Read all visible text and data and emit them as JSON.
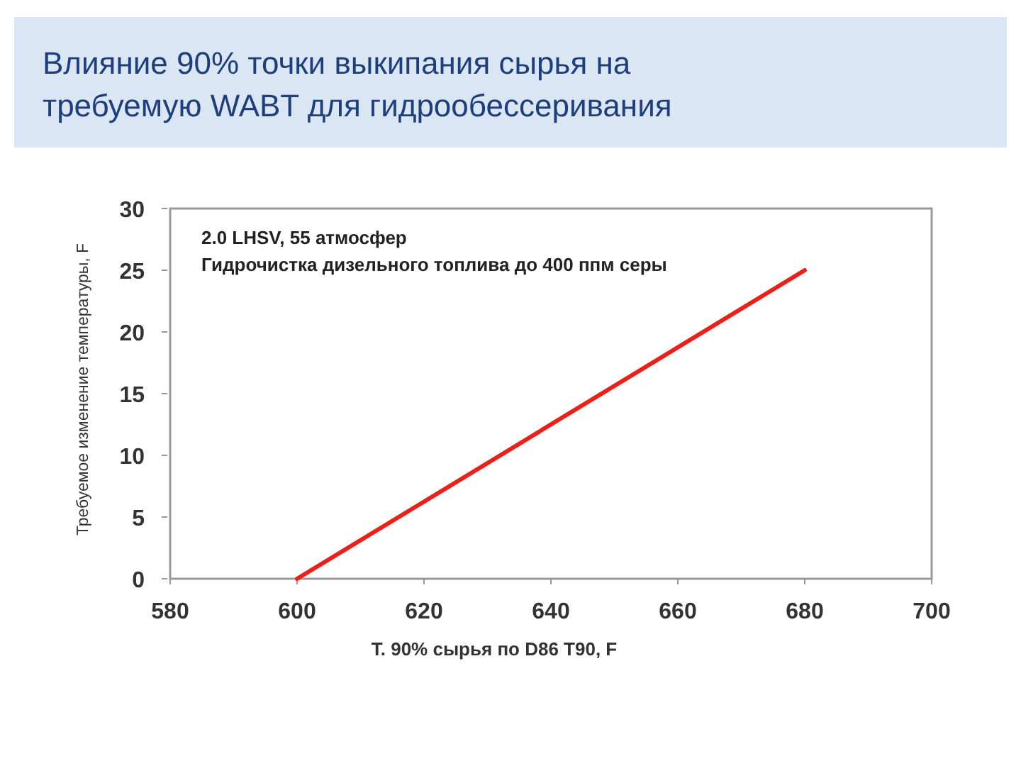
{
  "chart_data": {
    "type": "line",
    "title": "Влияние 90% точки выкипания сырья на требуемую WABT для гидрообессеривания",
    "xlabel": "T. 90% сырья по D86 T90, F",
    "ylabel": "Требуемое изменение температуры, F",
    "annotations": [
      "2.0 LHSV, 55 атмосфер",
      "Гидрочистка дизельного топлива до 400 ппм серы"
    ],
    "x": [
      600,
      680
    ],
    "series": [
      {
        "color": "#e8221a",
        "values": [
          0,
          25
        ]
      }
    ],
    "xlim": [
      580,
      700
    ],
    "xticks": [
      580,
      600,
      620,
      640,
      660,
      680,
      700
    ],
    "ylim": [
      0,
      30
    ],
    "yticks": [
      0,
      5,
      10,
      15,
      20,
      25,
      30
    ],
    "grid": false,
    "marker": "none",
    "line_style": "solid"
  }
}
